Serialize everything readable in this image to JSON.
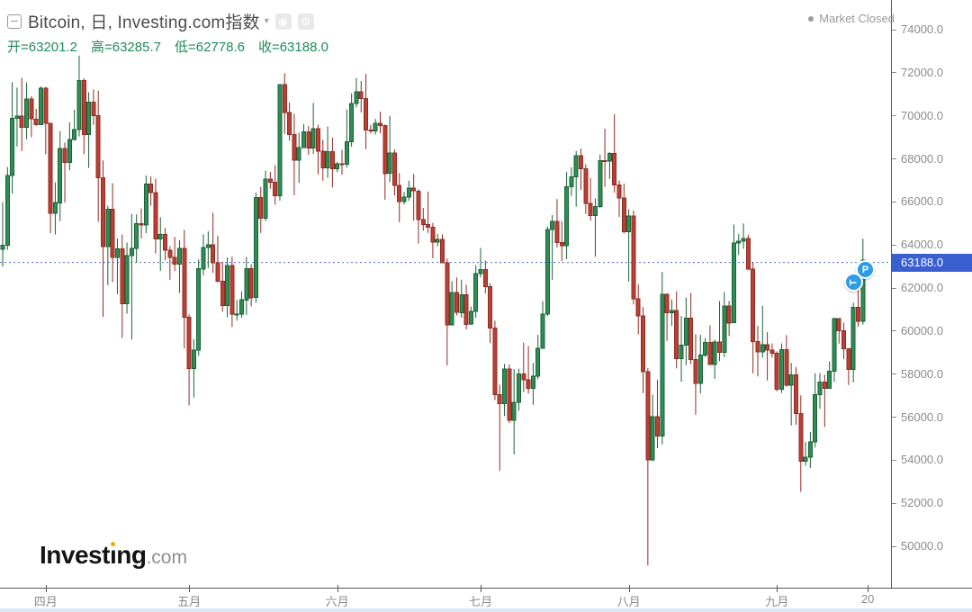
{
  "header": {
    "symbol_title": "Bitcoin, 日, Investing.com指数",
    "caret": "▾",
    "screenshot_button_glyph": "◉",
    "settings_button_glyph": "⚙",
    "market_status": "Market Closed"
  },
  "ohlc_readout": {
    "open": "开=63201.2",
    "high": "高=63285.7",
    "low": "低=62778.6",
    "close": "收=63188.0"
  },
  "logo": {
    "part1": "Invest",
    "part2": "ı",
    "part3": "ng",
    "suffix": ".com"
  },
  "badges": {
    "price_alert": "P",
    "tool": "T"
  },
  "colors": {
    "up_fill": "#2f8e54",
    "up_border": "#1a6238",
    "down_fill": "#ba4035",
    "down_border": "#8f2b23",
    "price_line": "#4a6fd8",
    "price_tag_bg": "#3a5fd1",
    "badge_blue": "#2e9be6",
    "ohlc_text": "#1f8a5d",
    "axis_text": "#8b8b8b",
    "axis_line": "#55585e",
    "logo_accent": "#f7a800"
  },
  "chart_data": {
    "type": "candlestick",
    "title": "Bitcoin, 日, Investing.com指数",
    "interval": "日",
    "last_price": 63188.0,
    "current_candle": {
      "open": 63201.2,
      "high": 63285.7,
      "low": 62778.6,
      "close": 63188.0
    },
    "y_ticks": [
      74000,
      72000,
      70000,
      68000,
      66000,
      64000,
      62000,
      60000,
      58000,
      56000,
      54000,
      52000,
      50000
    ],
    "ylim_plot": [
      48077,
      75380
    ],
    "x_labels": [
      {
        "label": "四月",
        "i": 9
      },
      {
        "label": "五月",
        "i": 39
      },
      {
        "label": "六月",
        "i": 70
      },
      {
        "label": "七月",
        "i": 100
      },
      {
        "label": "八月",
        "i": 131
      },
      {
        "label": "九月",
        "i": 162
      },
      {
        "label": "20",
        "i": 181
      }
    ],
    "candles": [
      [
        63796,
        65999,
        63000,
        63990
      ],
      [
        63990,
        67620,
        63772,
        67234
      ],
      [
        67234,
        71561,
        66385,
        69880
      ],
      [
        69880,
        71308,
        68574,
        69988
      ],
      [
        69988,
        71769,
        68359,
        69469
      ],
      [
        69469,
        71552,
        68903,
        70780
      ],
      [
        70780,
        70916,
        69009,
        69850
      ],
      [
        69850,
        70321,
        69540,
        69582
      ],
      [
        69582,
        71366,
        69562,
        71280
      ],
      [
        71280,
        71342,
        68213,
        69649
      ],
      [
        69649,
        69674,
        64550,
        65463
      ],
      [
        65463,
        66903,
        64493,
        65963
      ],
      [
        65963,
        69291,
        65113,
        68487
      ],
      [
        68487,
        68756,
        65972,
        67837
      ],
      [
        67837,
        69692,
        67464,
        68896
      ],
      [
        68896,
        70284,
        68851,
        69360
      ],
      [
        69360,
        72797,
        69043,
        71631
      ],
      [
        71631,
        71742,
        68210,
        69140
      ],
      [
        69140,
        71093,
        67578,
        70631
      ],
      [
        70631,
        71227,
        69567,
        70006
      ],
      [
        70006,
        71174,
        65086,
        67116
      ],
      [
        67116,
        67929,
        60660,
        63924
      ],
      [
        63924,
        65824,
        62134,
        65661
      ],
      [
        65661,
        66867,
        62274,
        63426
      ],
      [
        63426,
        64305,
        61716,
        63811
      ],
      [
        63811,
        64486,
        59678,
        61277
      ],
      [
        61277,
        64117,
        60803,
        63512
      ],
      [
        63512,
        65450,
        59600,
        63843
      ],
      [
        63843,
        65419,
        63170,
        64994
      ],
      [
        64994,
        65695,
        64300,
        64926
      ],
      [
        64926,
        67232,
        64548,
        66837
      ],
      [
        66837,
        67184,
        65822,
        66423
      ],
      [
        66423,
        67081,
        63606,
        64276
      ],
      [
        64276,
        65297,
        62794,
        64481
      ],
      [
        64481,
        64789,
        63297,
        63755
      ],
      [
        63755,
        63937,
        62387,
        63419
      ],
      [
        63419,
        64370,
        62781,
        63113
      ],
      [
        63113,
        64228,
        61765,
        63841
      ],
      [
        63841,
        64703,
        59191,
        60636
      ],
      [
        60636,
        60780,
        56552,
        58254
      ],
      [
        58254,
        59625,
        56911,
        59123
      ],
      [
        59123,
        63324,
        58848,
        62889
      ],
      [
        62889,
        64494,
        62592,
        63892
      ],
      [
        63892,
        64630,
        62923,
        64012
      ],
      [
        64012,
        65500,
        62700,
        63162
      ],
      [
        63162,
        64420,
        62261,
        62312
      ],
      [
        62312,
        63219,
        60888,
        61187
      ],
      [
        61187,
        63419,
        60630,
        63049
      ],
      [
        63049,
        63450,
        60190,
        60792
      ],
      [
        60792,
        61451,
        60488,
        60793
      ],
      [
        60793,
        61840,
        60610,
        61448
      ],
      [
        61448,
        63440,
        60750,
        62901
      ],
      [
        62901,
        63096,
        61143,
        61552
      ],
      [
        61552,
        66440,
        61320,
        66207
      ],
      [
        66207,
        66700,
        64560,
        65231
      ],
      [
        65231,
        67450,
        65106,
        67051
      ],
      [
        67051,
        67392,
        66610,
        66914
      ],
      [
        66914,
        67703,
        65870,
        66278
      ],
      [
        66278,
        71447,
        66060,
        71444
      ],
      [
        71444,
        71979,
        69163,
        70151
      ],
      [
        70151,
        70623,
        68842,
        69122
      ],
      [
        69122,
        70096,
        66312,
        67935
      ],
      [
        67935,
        69220,
        66882,
        68526
      ],
      [
        68526,
        69614,
        68504,
        69263
      ],
      [
        69263,
        69521,
        68180,
        68507
      ],
      [
        68507,
        70597,
        68230,
        69399
      ],
      [
        69399,
        69585,
        67275,
        68363
      ],
      [
        68363,
        68891,
        66990,
        67578
      ],
      [
        67578,
        69500,
        67118,
        68344
      ],
      [
        68344,
        68990,
        66670,
        67540
      ],
      [
        67540,
        67850,
        67390,
        67760
      ],
      [
        67760,
        68420,
        67257,
        67745
      ],
      [
        67745,
        70288,
        67600,
        68804
      ],
      [
        68804,
        71047,
        68567,
        70567
      ],
      [
        70567,
        71758,
        70383,
        71109
      ],
      [
        71109,
        71616,
        70150,
        70797
      ],
      [
        70797,
        71949,
        68450,
        69344
      ],
      [
        69344,
        69582,
        69172,
        69300
      ],
      [
        69300,
        69851,
        69123,
        69648
      ],
      [
        69648,
        70195,
        69190,
        69540
      ],
      [
        69540,
        69590,
        66101,
        67320
      ],
      [
        67320,
        69999,
        66905,
        68262
      ],
      [
        68262,
        68440,
        66300,
        66770
      ],
      [
        66770,
        67340,
        65054,
        66011
      ],
      [
        66011,
        66458,
        65871,
        66223
      ],
      [
        66223,
        66990,
        66050,
        66640
      ],
      [
        66640,
        67298,
        65130,
        66505
      ],
      [
        66505,
        66583,
        64060,
        65175
      ],
      [
        65175,
        65727,
        64660,
        64946
      ],
      [
        64946,
        66482,
        64559,
        64829
      ],
      [
        64829,
        65024,
        63379,
        64126
      ],
      [
        64126,
        64520,
        63936,
        64261
      ],
      [
        64261,
        64491,
        63211,
        63180
      ],
      [
        63180,
        63369,
        58402,
        60277
      ],
      [
        60277,
        62324,
        60262,
        61790
      ],
      [
        61790,
        62487,
        60730,
        60860
      ],
      [
        60860,
        62384,
        60620,
        61684
      ],
      [
        61684,
        62150,
        60077,
        60318
      ],
      [
        60318,
        61141,
        60276,
        60920
      ],
      [
        60920,
        63058,
        60613,
        62675
      ],
      [
        62675,
        63862,
        62489,
        62847
      ],
      [
        62847,
        63274,
        61752,
        62054
      ],
      [
        62054,
        62220,
        59437,
        60146
      ],
      [
        60146,
        60479,
        56792,
        57042
      ],
      [
        57042,
        57506,
        53499,
        56633
      ],
      [
        56633,
        58475,
        56055,
        58239
      ],
      [
        58239,
        58450,
        55730,
        55849
      ],
      [
        55849,
        58236,
        54260,
        56689
      ],
      [
        56689,
        58249,
        56287,
        58009
      ],
      [
        58009,
        59462,
        57167,
        57742
      ],
      [
        57742,
        59303,
        57102,
        57344
      ],
      [
        57344,
        58516,
        56571,
        57899
      ],
      [
        57899,
        59830,
        57764,
        59204
      ],
      [
        59204,
        61395,
        59193,
        60797
      ],
      [
        60797,
        64870,
        60689,
        64724
      ],
      [
        64724,
        65389,
        62381,
        65097
      ],
      [
        65097,
        66129,
        63880,
        64118
      ],
      [
        64118,
        65105,
        63238,
        63974
      ],
      [
        63974,
        67385,
        63338,
        66710
      ],
      [
        66710,
        67607,
        66276,
        67163
      ],
      [
        67163,
        68366,
        65777,
        68154
      ],
      [
        68154,
        68474,
        66559,
        67532
      ],
      [
        67532,
        67750,
        65441,
        65928
      ],
      [
        65928,
        67120,
        65120,
        65372
      ],
      [
        65372,
        66170,
        63456,
        65777
      ],
      [
        65777,
        68200,
        65723,
        67907
      ],
      [
        67907,
        69399,
        66700,
        67896
      ],
      [
        67896,
        68318,
        67066,
        68255
      ],
      [
        68255,
        70079,
        66428,
        66784
      ],
      [
        66784,
        67000,
        65302,
        66188
      ],
      [
        66188,
        66849,
        64530,
        64619
      ],
      [
        64619,
        65659,
        62302,
        65354
      ],
      [
        65354,
        65596,
        61234,
        61498
      ],
      [
        61498,
        62168,
        59850,
        60696
      ],
      [
        60696,
        61112,
        57117,
        58116
      ],
      [
        58116,
        58297,
        49112,
        54019
      ],
      [
        54019,
        57056,
        53950,
        56022
      ],
      [
        56022,
        57736,
        54559,
        55128
      ],
      [
        55128,
        62745,
        54730,
        61710
      ],
      [
        61710,
        61755,
        59540,
        60841
      ],
      [
        60841,
        61470,
        60240,
        60945
      ],
      [
        60945,
        61838,
        58266,
        58713
      ],
      [
        58713,
        60695,
        57642,
        59346
      ],
      [
        59346,
        61560,
        58417,
        60601
      ],
      [
        60601,
        61770,
        58455,
        58680
      ],
      [
        58680,
        59845,
        56110,
        57560
      ],
      [
        57560,
        59836,
        57100,
        58894
      ],
      [
        58894,
        59670,
        58785,
        59478
      ],
      [
        59478,
        60270,
        58433,
        58445
      ],
      [
        58445,
        59608,
        57780,
        59493
      ],
      [
        59493,
        61396,
        58600,
        59012
      ],
      [
        59012,
        61830,
        58789,
        61170
      ],
      [
        61170,
        61400,
        59766,
        60381
      ],
      [
        60381,
        64947,
        60372,
        64094
      ],
      [
        64094,
        64513,
        63531,
        64178
      ],
      [
        64178,
        65000,
        63817,
        64301
      ],
      [
        64301,
        64481,
        62839,
        62880
      ],
      [
        62880,
        63212,
        58034,
        59505
      ],
      [
        59505,
        60236,
        57890,
        59027
      ],
      [
        59027,
        61178,
        58760,
        59359
      ],
      [
        59359,
        59948,
        57706,
        59117
      ],
      [
        59117,
        59423,
        58766,
        58973
      ],
      [
        58973,
        59062,
        57201,
        57301
      ],
      [
        57301,
        59425,
        57128,
        59132
      ],
      [
        59132,
        59812,
        57415,
        57488
      ],
      [
        57488,
        58519,
        55606,
        57971
      ],
      [
        57971,
        58324,
        55643,
        56160
      ],
      [
        56160,
        57008,
        52530,
        53948
      ],
      [
        53948,
        54850,
        53745,
        54139
      ],
      [
        54139,
        55318,
        53629,
        54841
      ],
      [
        54841,
        58041,
        54591,
        57042
      ],
      [
        57042,
        58044,
        56386,
        57635
      ],
      [
        57635,
        57973,
        55545,
        57338
      ],
      [
        57338,
        58588,
        57324,
        58133
      ],
      [
        58133,
        60625,
        57632,
        60571
      ],
      [
        60571,
        60610,
        59415,
        60005
      ],
      [
        60005,
        60382,
        58691,
        59182
      ],
      [
        59182,
        59210,
        57493,
        58213
      ],
      [
        58213,
        61320,
        57610,
        61100
      ],
      [
        61100,
        62100,
        60200,
        60450
      ],
      [
        60450,
        64295,
        60300,
        63300
      ],
      [
        63201.2,
        63285.7,
        62778.6,
        63188.0
      ]
    ]
  }
}
